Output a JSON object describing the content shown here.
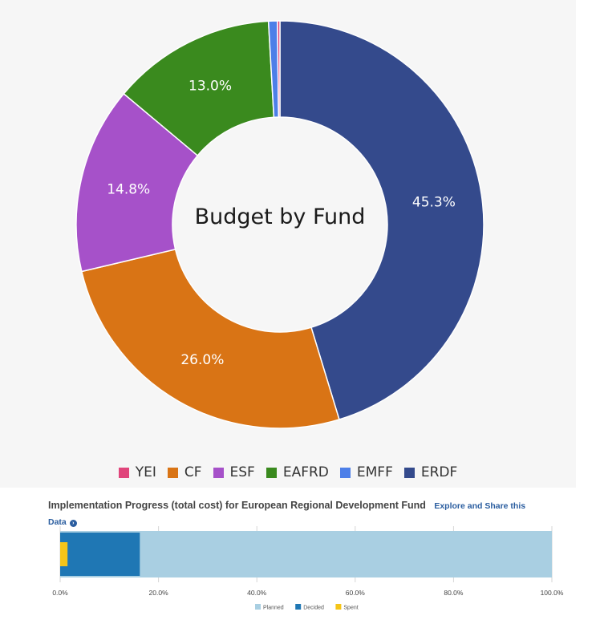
{
  "chart_data": [
    {
      "type": "pie",
      "subtype": "donut",
      "title": "Budget by Fund",
      "categories": [
        "YEI",
        "CF",
        "ESF",
        "EAFRD",
        "EMFF",
        "ERDF"
      ],
      "values": [
        0.2,
        26.0,
        14.8,
        13.0,
        0.7,
        45.3
      ],
      "data_labels": [
        "",
        "26.0%",
        "14.8%",
        "13.0%",
        "",
        "45.3%"
      ],
      "colors": [
        "#e0457b",
        "#d97415",
        "#a651c9",
        "#3a8a1e",
        "#4d7fe8",
        "#344a8c"
      ],
      "legend_position": "bottom"
    },
    {
      "type": "bar",
      "subtype": "horizontal-overlap-progress",
      "title": "Implementation Progress (total cost) for European Regional Development Fund",
      "series": [
        {
          "name": "Planned",
          "values": [
            100.0
          ]
        },
        {
          "name": "Decided",
          "values": [
            16.2
          ]
        },
        {
          "name": "Spent",
          "values": [
            1.5
          ]
        }
      ],
      "colors": [
        "#a9cfe2",
        "#1f77b4",
        "#f5c518"
      ],
      "xlim": [
        0,
        100
      ],
      "xticks": [
        "0.0%",
        "20.0%",
        "40.0%",
        "60.0%",
        "80.0%",
        "100.0%"
      ],
      "grid": true,
      "legend_position": "bottom"
    }
  ],
  "progress_link": {
    "text_1": "Explore and Share this",
    "text_2": "Data",
    "icon": "chevron-right-circle-icon"
  }
}
